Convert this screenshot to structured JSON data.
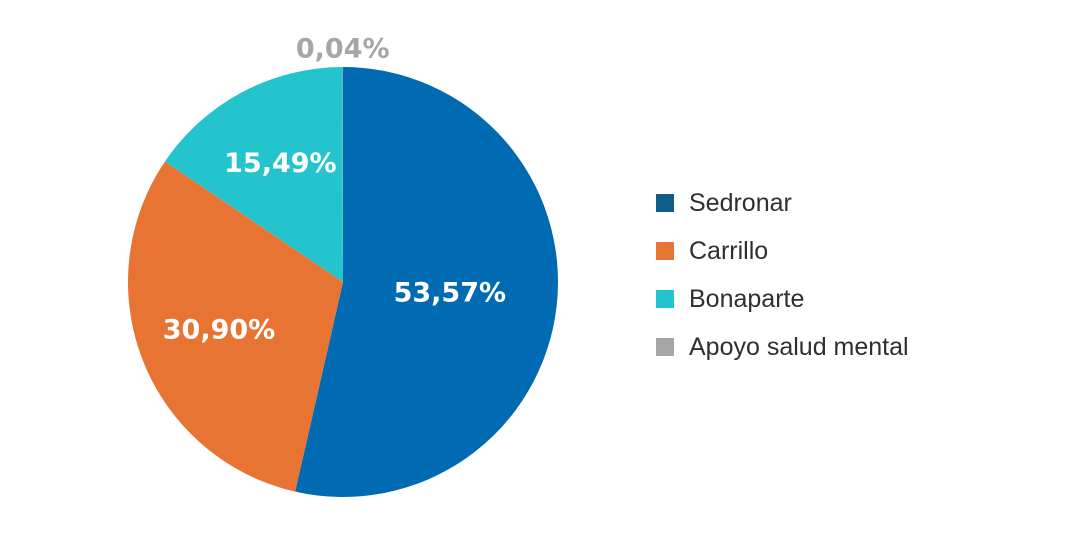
{
  "chart_data": {
    "type": "pie",
    "categories": [
      "Sedronar",
      "Carrillo",
      "Bonaparte",
      "Apoyo salud mental"
    ],
    "values": [
      53.57,
      30.9,
      15.49,
      0.04
    ],
    "value_labels": [
      "53,57%",
      "30,90%",
      "15,49%",
      "0,04%"
    ],
    "colors": [
      "#006bb3",
      "#e87434",
      "#24c4ce",
      "#a6a6a6"
    ],
    "legend_colors": [
      "#0f5e8a",
      "#e87434",
      "#24c4ce",
      "#a6a6a6"
    ],
    "label_colors": [
      "#ffffff",
      "#ffffff",
      "#ffffff",
      "#a6a6a6"
    ],
    "start_angle": "12 o'clock",
    "direction": "clockwise",
    "legend_position": "right"
  }
}
